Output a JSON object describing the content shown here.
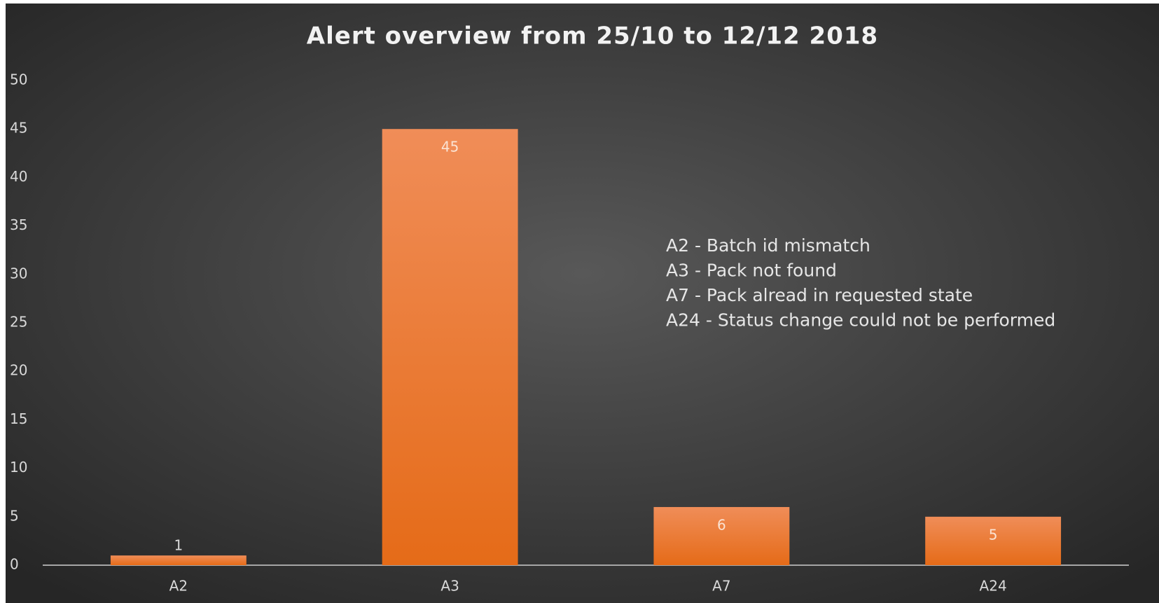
{
  "chart_data": {
    "type": "bar",
    "title": "Alert overview from 25/10 to 12/12 2018",
    "categories": [
      "A2",
      "A3",
      "A7",
      "A24"
    ],
    "values": [
      1,
      45,
      6,
      5
    ],
    "color": "#ed7d31",
    "ylim": [
      0,
      50
    ],
    "yticks": [
      0,
      5,
      10,
      15,
      20,
      25,
      30,
      35,
      40,
      45,
      50
    ],
    "grid": false,
    "annotations": [
      "A2 - Batch id mismatch",
      "A3 - Pack not found",
      "A7 - Pack alread in requested state",
      "A24 - Status change could not be performed"
    ]
  }
}
